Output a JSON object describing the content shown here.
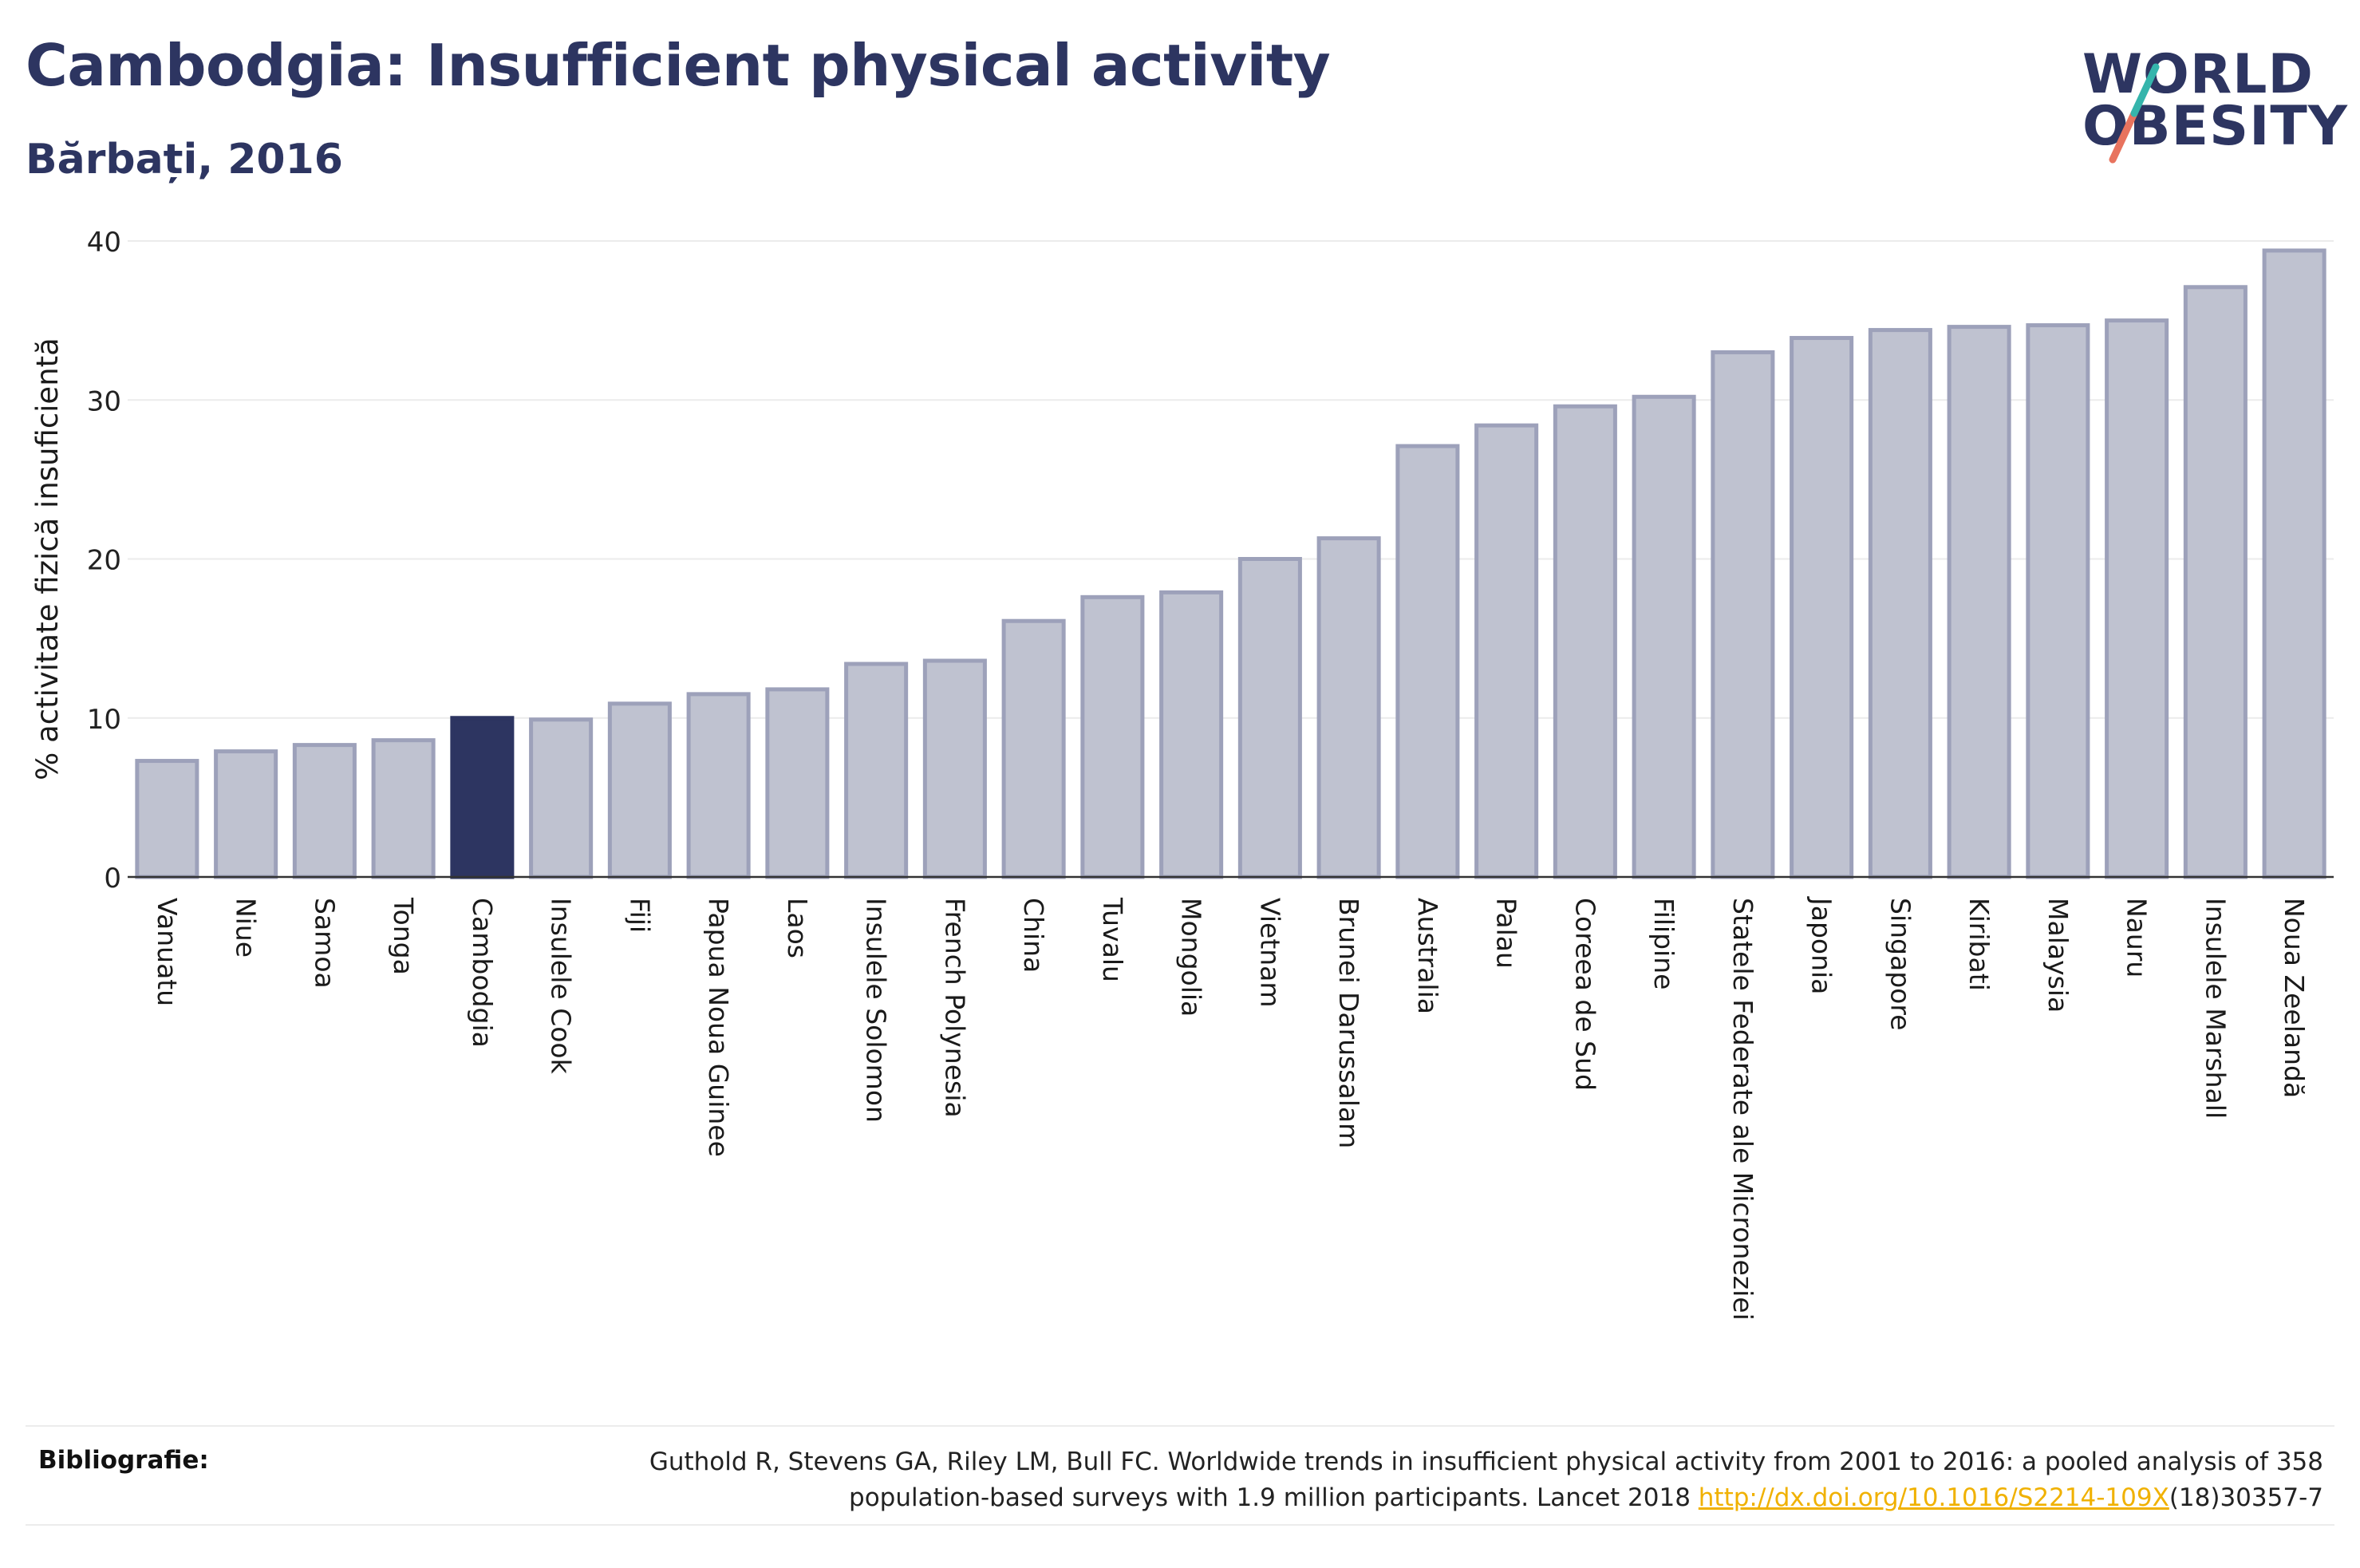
{
  "title": "Cambodgia: Insufficient physical activity",
  "subtitle": "Bărbați, 2016",
  "logo": {
    "line1": "WORLD",
    "line2": "OBESITY"
  },
  "colors": {
    "bar": "#bfc2d0",
    "bar_edge": "#9da1ba",
    "highlight": "#2d3561",
    "title": "#2d3561",
    "link": "#f0b100"
  },
  "chart_data": {
    "type": "bar",
    "ylabel": "% activitate fizică insuficientă",
    "ylim": [
      0,
      40
    ],
    "yticks": [
      0,
      10,
      20,
      30,
      40
    ],
    "grid": true,
    "highlight": "Cambodgia",
    "categories": [
      "Vanuatu",
      "Niue",
      "Samoa",
      "Tonga",
      "Cambodgia",
      "Insulele Cook",
      "Fiji",
      "Papua Noua Guinee",
      "Laos",
      "Insulele Solomon",
      "French Polynesia",
      "China",
      "Tuvalu",
      "Mongolia",
      "Vietnam",
      "Brunei Darussalam",
      "Australia",
      "Palau",
      "Coreea de Sud",
      "Filipine",
      "Statele Federate ale Microneziei",
      "Japonia",
      "Singapore",
      "Kiribati",
      "Malaysia",
      "Nauru",
      "Insulele Marshall",
      "Noua Zeelandă"
    ],
    "values": [
      7.3,
      7.9,
      8.3,
      8.6,
      10.0,
      9.9,
      10.9,
      11.5,
      11.8,
      13.4,
      13.6,
      16.1,
      17.6,
      17.9,
      20.0,
      21.3,
      27.1,
      28.4,
      29.6,
      30.2,
      33.0,
      33.9,
      34.4,
      34.6,
      34.7,
      35.0,
      37.1,
      39.4
    ]
  },
  "bibliography": {
    "label": "Bibliografie:",
    "line1": "Guthold R, Stevens GA, Riley LM, Bull FC. Worldwide trends in insufficient physical activity from 2001 to 2016: a pooled analysis of 358",
    "line2_prefix": "population-based surveys with 1.9 million participants. Lancet 2018 ",
    "link": "http://dx.doi.org/10.1016/S2214-109X",
    "line2_suffix": "(18)30357-7"
  }
}
